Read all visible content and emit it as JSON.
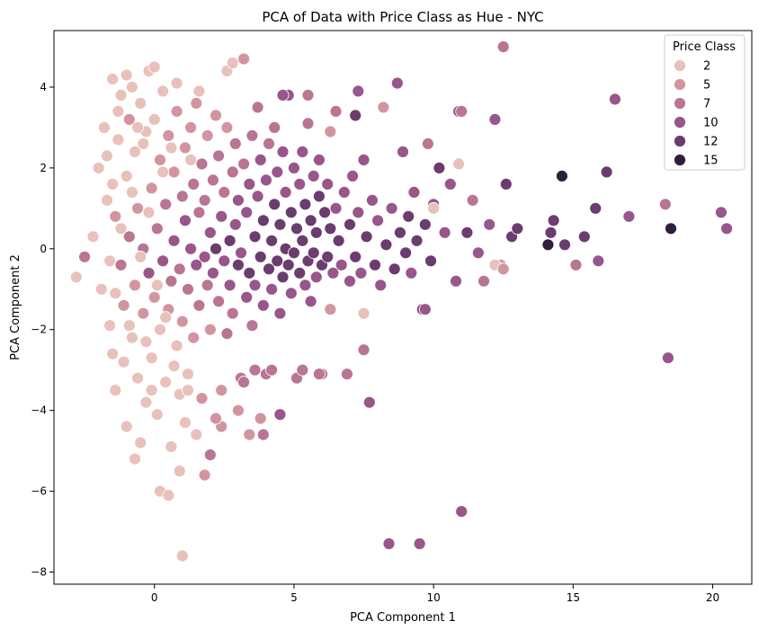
{
  "chart_data": {
    "type": "scatter",
    "title": "PCA of Data with Price Class as Hue - NYC",
    "xlabel": "PCA Component 1",
    "ylabel": "PCA Component 2",
    "xlim": [
      -3.6,
      21.4
    ],
    "ylim": [
      -8.3,
      5.4
    ],
    "xticks": [
      0,
      5,
      10,
      15,
      20
    ],
    "yticks": [
      -8,
      -6,
      -4,
      -2,
      0,
      2,
      4
    ],
    "grid": false,
    "legend": {
      "title": "Price Class",
      "placement": "top-right",
      "entries": [
        {
          "label": "2",
          "color": "#e8c1ba"
        },
        {
          "label": "5",
          "color": "#d295a0"
        },
        {
          "label": "7",
          "color": "#b97593"
        },
        {
          "label": "10",
          "color": "#98568a"
        },
        {
          "label": "12",
          "color": "#6b3c70"
        },
        {
          "label": "15",
          "color": "#2f1f3d"
        }
      ]
    },
    "hue_range": [
      1,
      16
    ],
    "points": [
      [
        -2.8,
        -0.7,
        2
      ],
      [
        -2.5,
        -0.2,
        7
      ],
      [
        -2.2,
        0.3,
        2
      ],
      [
        -2.0,
        2.0,
        2
      ],
      [
        -1.9,
        -1.0,
        2
      ],
      [
        -1.8,
        3.0,
        2
      ],
      [
        -1.7,
        1.2,
        2
      ],
      [
        -1.6,
        -1.9,
        2
      ],
      [
        -1.5,
        4.2,
        2
      ],
      [
        -1.5,
        -2.6,
        2
      ],
      [
        -1.4,
        0.8,
        5
      ],
      [
        -1.4,
        -3.5,
        2
      ],
      [
        -1.3,
        2.7,
        2
      ],
      [
        -1.2,
        -0.4,
        7
      ],
      [
        -1.2,
        3.8,
        2
      ],
      [
        -1.1,
        -1.4,
        5
      ],
      [
        -1.0,
        1.8,
        2
      ],
      [
        -1.0,
        -4.4,
        2
      ],
      [
        -0.9,
        0.3,
        7
      ],
      [
        -0.9,
        3.2,
        5
      ],
      [
        -0.8,
        -2.2,
        2
      ],
      [
        -0.8,
        4.0,
        2
      ],
      [
        -0.7,
        -0.9,
        5
      ],
      [
        -0.7,
        2.4,
        2
      ],
      [
        -0.6,
        -3.2,
        2
      ],
      [
        -0.6,
        1.0,
        5
      ],
      [
        -0.5,
        -4.8,
        2
      ],
      [
        -0.5,
        3.6,
        2
      ],
      [
        -0.4,
        -1.6,
        5
      ],
      [
        -0.4,
        0.0,
        7
      ],
      [
        -0.3,
        2.9,
        2
      ],
      [
        -0.3,
        -3.8,
        2
      ],
      [
        -0.2,
        4.4,
        2
      ],
      [
        -0.2,
        -0.6,
        10
      ],
      [
        -0.1,
        1.5,
        5
      ],
      [
        -0.1,
        -2.7,
        2
      ],
      [
        0.0,
        3.2,
        2
      ],
      [
        0.0,
        -1.2,
        5
      ],
      [
        0.1,
        0.5,
        7
      ],
      [
        0.1,
        -4.1,
        2
      ],
      [
        0.2,
        2.2,
        5
      ],
      [
        0.2,
        -2.0,
        2
      ],
      [
        0.3,
        -0.3,
        10
      ],
      [
        0.3,
        3.9,
        2
      ],
      [
        0.4,
        -3.3,
        2
      ],
      [
        0.4,
        1.1,
        7
      ],
      [
        0.5,
        -1.5,
        5
      ],
      [
        0.5,
        2.8,
        5
      ],
      [
        0.6,
        -0.8,
        7
      ],
      [
        0.6,
        -4.9,
        2
      ],
      [
        0.7,
        0.2,
        10
      ],
      [
        0.7,
        1.9,
        5
      ],
      [
        0.8,
        -2.4,
        2
      ],
      [
        0.8,
        3.4,
        5
      ],
      [
        0.9,
        -0.5,
        7
      ],
      [
        0.9,
        -3.6,
        2
      ],
      [
        1.0,
        1.3,
        7
      ],
      [
        1.0,
        -1.8,
        5
      ],
      [
        1.1,
        0.7,
        10
      ],
      [
        1.1,
        2.5,
        5
      ],
      [
        1.2,
        -1.0,
        7
      ],
      [
        1.2,
        -3.1,
        2
      ],
      [
        1.3,
        0.0,
        10
      ],
      [
        1.3,
        3.0,
        5
      ],
      [
        1.4,
        -2.2,
        5
      ],
      [
        1.4,
        1.6,
        7
      ],
      [
        1.5,
        -0.4,
        10
      ],
      [
        1.5,
        3.6,
        5
      ],
      [
        1.6,
        0.9,
        7
      ],
      [
        1.6,
        -1.4,
        7
      ],
      [
        1.7,
        2.1,
        7
      ],
      [
        1.7,
        -3.7,
        5
      ],
      [
        1.8,
        -0.2,
        10
      ],
      [
        1.8,
        1.2,
        7
      ],
      [
        1.9,
        -0.9,
        7
      ],
      [
        1.9,
        2.8,
        5
      ],
      [
        2.0,
        0.4,
        10
      ],
      [
        2.0,
        -2.0,
        5
      ],
      [
        2.1,
        1.7,
        7
      ],
      [
        2.1,
        -0.6,
        10
      ],
      [
        2.2,
        3.3,
        5
      ],
      [
        2.2,
        0.0,
        12
      ],
      [
        2.3,
        -1.3,
        7
      ],
      [
        2.3,
        2.3,
        7
      ],
      [
        2.4,
        0.8,
        10
      ],
      [
        2.4,
        -4.4,
        5
      ],
      [
        2.5,
        -0.3,
        10
      ],
      [
        2.5,
        1.4,
        7
      ],
      [
        2.6,
        -2.1,
        7
      ],
      [
        2.6,
        3.0,
        5
      ],
      [
        2.7,
        0.2,
        12
      ],
      [
        2.7,
        -0.9,
        10
      ],
      [
        2.8,
        1.9,
        7
      ],
      [
        2.8,
        -1.6,
        7
      ],
      [
        2.9,
        0.6,
        10
      ],
      [
        2.9,
        2.6,
        7
      ],
      [
        3.0,
        -0.4,
        12
      ],
      [
        3.0,
        1.2,
        10
      ],
      [
        3.1,
        -3.2,
        7
      ],
      [
        3.1,
        -0.1,
        10
      ],
      [
        3.2,
        2.1,
        7
      ],
      [
        3.2,
        4.7,
        5
      ],
      [
        3.3,
        0.9,
        10
      ],
      [
        3.3,
        -1.2,
        10
      ],
      [
        3.4,
        -0.6,
        12
      ],
      [
        3.4,
        1.6,
        10
      ],
      [
        3.5,
        2.8,
        7
      ],
      [
        3.5,
        -1.9,
        7
      ],
      [
        3.6,
        0.3,
        12
      ],
      [
        3.6,
        -0.9,
        10
      ],
      [
        3.7,
        1.3,
        10
      ],
      [
        3.7,
        3.5,
        7
      ],
      [
        3.8,
        -0.2,
        12
      ],
      [
        3.8,
        2.2,
        10
      ],
      [
        3.9,
        -1.4,
        10
      ],
      [
        3.9,
        0.7,
        12
      ],
      [
        4.0,
        -3.1,
        7
      ],
      [
        4.0,
        1.7,
        10
      ],
      [
        4.1,
        -0.5,
        12
      ],
      [
        4.1,
        2.6,
        7
      ],
      [
        4.2,
        0.2,
        12
      ],
      [
        4.2,
        -1.0,
        10
      ],
      [
        4.3,
        1.1,
        12
      ],
      [
        4.3,
        3.0,
        7
      ],
      [
        4.4,
        -0.3,
        12
      ],
      [
        4.4,
        1.9,
        10
      ],
      [
        4.5,
        0.6,
        12
      ],
      [
        4.5,
        -1.6,
        10
      ],
      [
        4.6,
        -0.7,
        12
      ],
      [
        4.6,
        2.4,
        10
      ],
      [
        4.7,
        0.0,
        12
      ],
      [
        4.7,
        1.4,
        10
      ],
      [
        4.8,
        -0.4,
        12
      ],
      [
        4.8,
        3.8,
        10
      ],
      [
        4.9,
        0.9,
        12
      ],
      [
        4.9,
        -1.1,
        10
      ],
      [
        5.0,
        2.0,
        10
      ],
      [
        5.0,
        -0.1,
        12
      ],
      [
        5.1,
        0.5,
        12
      ],
      [
        5.1,
        -3.2,
        7
      ],
      [
        5.2,
        1.6,
        10
      ],
      [
        5.2,
        -0.6,
        12
      ],
      [
        5.3,
        0.2,
        12
      ],
      [
        5.3,
        2.4,
        10
      ],
      [
        5.4,
        -0.9,
        10
      ],
      [
        5.4,
        1.1,
        12
      ],
      [
        5.5,
        -0.3,
        12
      ],
      [
        5.5,
        3.1,
        7
      ],
      [
        5.6,
        0.7,
        12
      ],
      [
        5.6,
        -1.3,
        10
      ],
      [
        5.7,
        1.8,
        10
      ],
      [
        5.7,
        -0.1,
        12
      ],
      [
        5.8,
        0.4,
        12
      ],
      [
        5.8,
        -0.7,
        10
      ],
      [
        5.9,
        1.3,
        12
      ],
      [
        5.9,
        2.2,
        10
      ],
      [
        6.0,
        -0.4,
        12
      ],
      [
        6.0,
        -3.1,
        7
      ],
      [
        6.1,
        0.9,
        12
      ],
      [
        6.2,
        -0.2,
        12
      ],
      [
        6.2,
        1.6,
        10
      ],
      [
        6.3,
        0.5,
        12
      ],
      [
        6.3,
        -1.5,
        5
      ],
      [
        6.4,
        -0.6,
        10
      ],
      [
        6.5,
        1.0,
        10
      ],
      [
        6.6,
        0.2,
        12
      ],
      [
        6.7,
        -0.4,
        10
      ],
      [
        6.8,
        1.4,
        10
      ],
      [
        6.9,
        -3.1,
        7
      ],
      [
        7.0,
        0.6,
        12
      ],
      [
        7.0,
        -0.8,
        10
      ],
      [
        7.1,
        1.8,
        10
      ],
      [
        7.2,
        -0.2,
        12
      ],
      [
        7.2,
        3.3,
        12
      ],
      [
        7.3,
        0.9,
        10
      ],
      [
        7.4,
        -0.6,
        10
      ],
      [
        7.5,
        2.2,
        10
      ],
      [
        7.5,
        -1.6,
        2
      ],
      [
        7.6,
        0.3,
        12
      ],
      [
        7.7,
        -3.8,
        10
      ],
      [
        7.8,
        1.2,
        10
      ],
      [
        7.9,
        -0.4,
        12
      ],
      [
        8.0,
        0.7,
        10
      ],
      [
        8.1,
        -0.9,
        10
      ],
      [
        8.2,
        3.5,
        5
      ],
      [
        8.3,
        0.1,
        12
      ],
      [
        8.4,
        -7.3,
        10
      ],
      [
        8.5,
        1.0,
        10
      ],
      [
        8.6,
        -0.5,
        12
      ],
      [
        8.7,
        4.1,
        10
      ],
      [
        8.8,
        0.4,
        12
      ],
      [
        8.9,
        2.4,
        10
      ],
      [
        9.0,
        -0.1,
        12
      ],
      [
        9.1,
        0.8,
        12
      ],
      [
        9.2,
        -0.6,
        10
      ],
      [
        9.3,
        1.4,
        10
      ],
      [
        9.4,
        0.2,
        12
      ],
      [
        9.5,
        -7.3,
        10
      ],
      [
        9.6,
        -1.5,
        10
      ],
      [
        9.7,
        0.6,
        12
      ],
      [
        9.8,
        2.6,
        7
      ],
      [
        9.9,
        -0.3,
        12
      ],
      [
        10.0,
        1.1,
        10
      ],
      [
        10.2,
        2.0,
        12
      ],
      [
        10.4,
        0.4,
        10
      ],
      [
        10.6,
        1.6,
        10
      ],
      [
        10.8,
        -0.8,
        10
      ],
      [
        10.9,
        3.4,
        10
      ],
      [
        11.0,
        -6.5,
        10
      ],
      [
        11.2,
        0.4,
        12
      ],
      [
        11.4,
        1.2,
        7
      ],
      [
        11.6,
        -0.1,
        10
      ],
      [
        11.8,
        -0.8,
        7
      ],
      [
        12.0,
        0.6,
        10
      ],
      [
        12.2,
        3.2,
        10
      ],
      [
        12.4,
        -0.4,
        5
      ],
      [
        12.6,
        1.6,
        12
      ],
      [
        12.5,
        5.0,
        7
      ],
      [
        12.8,
        0.3,
        12
      ],
      [
        13.0,
        0.5,
        12
      ],
      [
        14.1,
        0.1,
        15
      ],
      [
        14.2,
        0.4,
        12
      ],
      [
        14.3,
        0.7,
        12
      ],
      [
        14.6,
        1.8,
        15
      ],
      [
        14.7,
        0.1,
        12
      ],
      [
        15.1,
        -0.4,
        7
      ],
      [
        15.4,
        0.3,
        12
      ],
      [
        15.8,
        1.0,
        12
      ],
      [
        15.9,
        -0.3,
        10
      ],
      [
        16.2,
        1.9,
        12
      ],
      [
        16.5,
        3.7,
        10
      ],
      [
        17.0,
        0.8,
        10
      ],
      [
        18.3,
        1.1,
        7
      ],
      [
        18.4,
        -2.7,
        10
      ],
      [
        18.5,
        0.5,
        15
      ],
      [
        20.3,
        0.9,
        10
      ],
      [
        20.5,
        0.5,
        10
      ],
      [
        -1.7,
        2.3,
        2
      ],
      [
        -1.6,
        -0.3,
        2
      ],
      [
        -1.5,
        1.6,
        2
      ],
      [
        -1.4,
        -1.1,
        2
      ],
      [
        -1.3,
        3.4,
        2
      ],
      [
        -1.2,
        0.5,
        2
      ],
      [
        -1.1,
        -2.8,
        2
      ],
      [
        -1.0,
        4.3,
        2
      ],
      [
        -0.9,
        -1.9,
        2
      ],
      [
        -0.8,
        1.4,
        2
      ],
      [
        -0.7,
        -5.2,
        2
      ],
      [
        -0.6,
        3.0,
        2
      ],
      [
        -0.5,
        -0.2,
        2
      ],
      [
        -0.4,
        2.6,
        2
      ],
      [
        -0.3,
        -2.3,
        2
      ],
      [
        -0.2,
        0.9,
        2
      ],
      [
        -0.1,
        -3.5,
        2
      ],
      [
        0.0,
        4.5,
        2
      ],
      [
        0.1,
        -0.9,
        2
      ],
      [
        0.2,
        -6.0,
        2
      ],
      [
        0.3,
        1.9,
        2
      ],
      [
        0.4,
        -1.7,
        2
      ],
      [
        0.5,
        -6.1,
        2
      ],
      [
        0.6,
        2.5,
        2
      ],
      [
        0.7,
        -2.9,
        2
      ],
      [
        0.8,
        4.1,
        2
      ],
      [
        0.9,
        -5.5,
        2
      ],
      [
        1.0,
        -7.6,
        2
      ],
      [
        1.1,
        -4.3,
        2
      ],
      [
        1.2,
        -3.5,
        2
      ],
      [
        1.3,
        2.2,
        2
      ],
      [
        1.5,
        -4.6,
        2
      ],
      [
        1.6,
        3.9,
        2
      ],
      [
        1.8,
        -5.6,
        5
      ],
      [
        2.0,
        -5.1,
        7
      ],
      [
        2.2,
        -4.2,
        5
      ],
      [
        2.4,
        -3.5,
        5
      ],
      [
        2.6,
        4.4,
        2
      ],
      [
        2.8,
        4.6,
        2
      ],
      [
        3.0,
        -4.0,
        5
      ],
      [
        3.2,
        -3.3,
        7
      ],
      [
        3.4,
        -4.6,
        5
      ],
      [
        3.6,
        -3.0,
        7
      ],
      [
        3.8,
        -4.2,
        5
      ],
      [
        3.9,
        -4.6,
        7
      ],
      [
        4.2,
        -3.0,
        7
      ],
      [
        4.5,
        -4.1,
        10
      ],
      [
        4.6,
        3.8,
        10
      ],
      [
        5.3,
        -3.0,
        7
      ],
      [
        5.5,
        3.8,
        7
      ],
      [
        5.9,
        -3.1,
        7
      ],
      [
        6.3,
        2.9,
        5
      ],
      [
        6.5,
        3.4,
        7
      ],
      [
        7.3,
        3.9,
        10
      ],
      [
        7.5,
        -2.5,
        7
      ],
      [
        9.7,
        -1.5,
        10
      ],
      [
        10.0,
        1.0,
        2
      ],
      [
        10.9,
        2.1,
        2
      ],
      [
        11.0,
        3.4,
        7
      ],
      [
        12.2,
        -0.4,
        2
      ],
      [
        12.5,
        -0.5,
        5
      ]
    ]
  }
}
